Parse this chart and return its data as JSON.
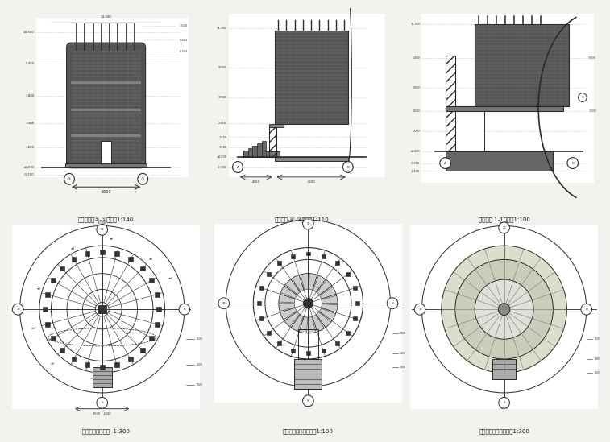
{
  "bg_color": "#f2f2ee",
  "line_color": "#2a2a2a",
  "dark_fill": "#444444",
  "medium_fill": "#777777",
  "hatch_fill": "#666666",
  "title_color": "#111111",
  "panels": [
    {
      "title": "风情竹楼一②-①立面图1:140",
      "col": 0,
      "row": 0
    },
    {
      "title": "风情竹楼-④-③立面图1:110",
      "col": 1,
      "row": 0
    },
    {
      "title": "风情竹楼 1-1剖面图1:100",
      "col": 2,
      "row": 0
    },
    {
      "title": "风情竹楼一平面图  1:300",
      "col": 0,
      "row": 1
    },
    {
      "title": "风情竹楼一露台平面图1:100",
      "col": 1,
      "row": 1
    },
    {
      "title": "风情竹楼一层底平面图1:300",
      "col": 2,
      "row": 1
    }
  ]
}
